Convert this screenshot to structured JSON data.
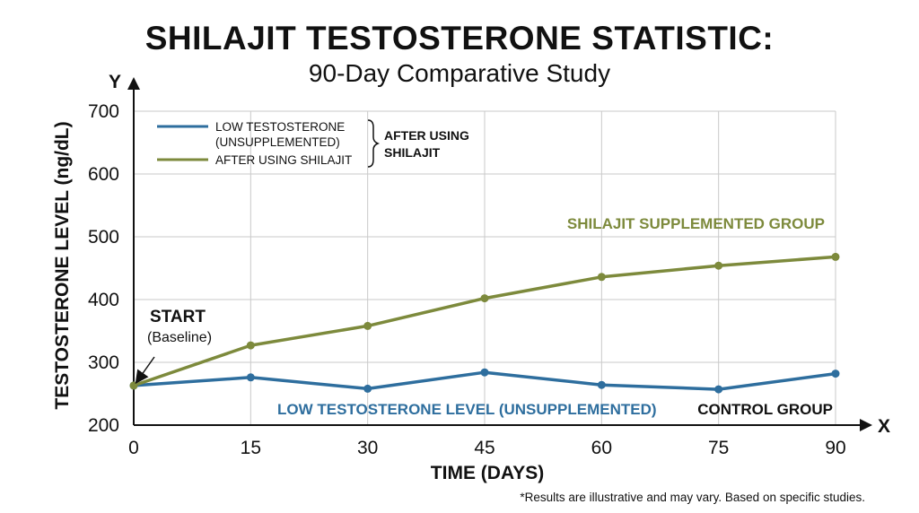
{
  "chart_data": {
    "type": "line",
    "title": "SHILAJIT TESTOSTERONE STATISTIC:",
    "subtitle": "90-Day Comparative Study",
    "xlabel": "TIME (DAYS)",
    "ylabel": "TESTOSTERONE LEVEL (ng/dL)",
    "x_axis_letter": "X",
    "y_axis_letter": "Y",
    "x": [
      0,
      15,
      30,
      45,
      60,
      75,
      90
    ],
    "xlim": [
      0,
      90
    ],
    "ylim": [
      200,
      700
    ],
    "yticks": [
      200,
      300,
      400,
      500,
      600,
      700
    ],
    "grid": true,
    "legend_position": "top-left",
    "series": [
      {
        "name": "LOW TESTOSTERONE (UNSUPPLEMENTED)",
        "color": "#2e6e9e",
        "values": [
          263,
          276,
          258,
          284,
          264,
          257,
          282
        ]
      },
      {
        "name": "AFTER USING SHILAJIT",
        "color": "#7d8a3c",
        "values": [
          263,
          327,
          358,
          402,
          436,
          454,
          468
        ]
      }
    ],
    "legend": {
      "line1_a": "LOW TESTOSTERONE",
      "line1_b": "(UNSUPPLEMENTED)",
      "line2": "AFTER USING SHILAJIT",
      "brace_a": "AFTER USING",
      "brace_b": "SHILAJIT"
    },
    "annotations": {
      "shilajit_group": "SHILAJIT SUPPLEMENTED GROUP",
      "low_level": "LOW TESTOSTERONE LEVEL (UNSUPPLEMENTED)",
      "control_group": "CONTROL GROUP",
      "start": "START",
      "baseline": "(Baseline)"
    },
    "footnote": "*Results are illustrative and may vary. Based on specific studies."
  }
}
